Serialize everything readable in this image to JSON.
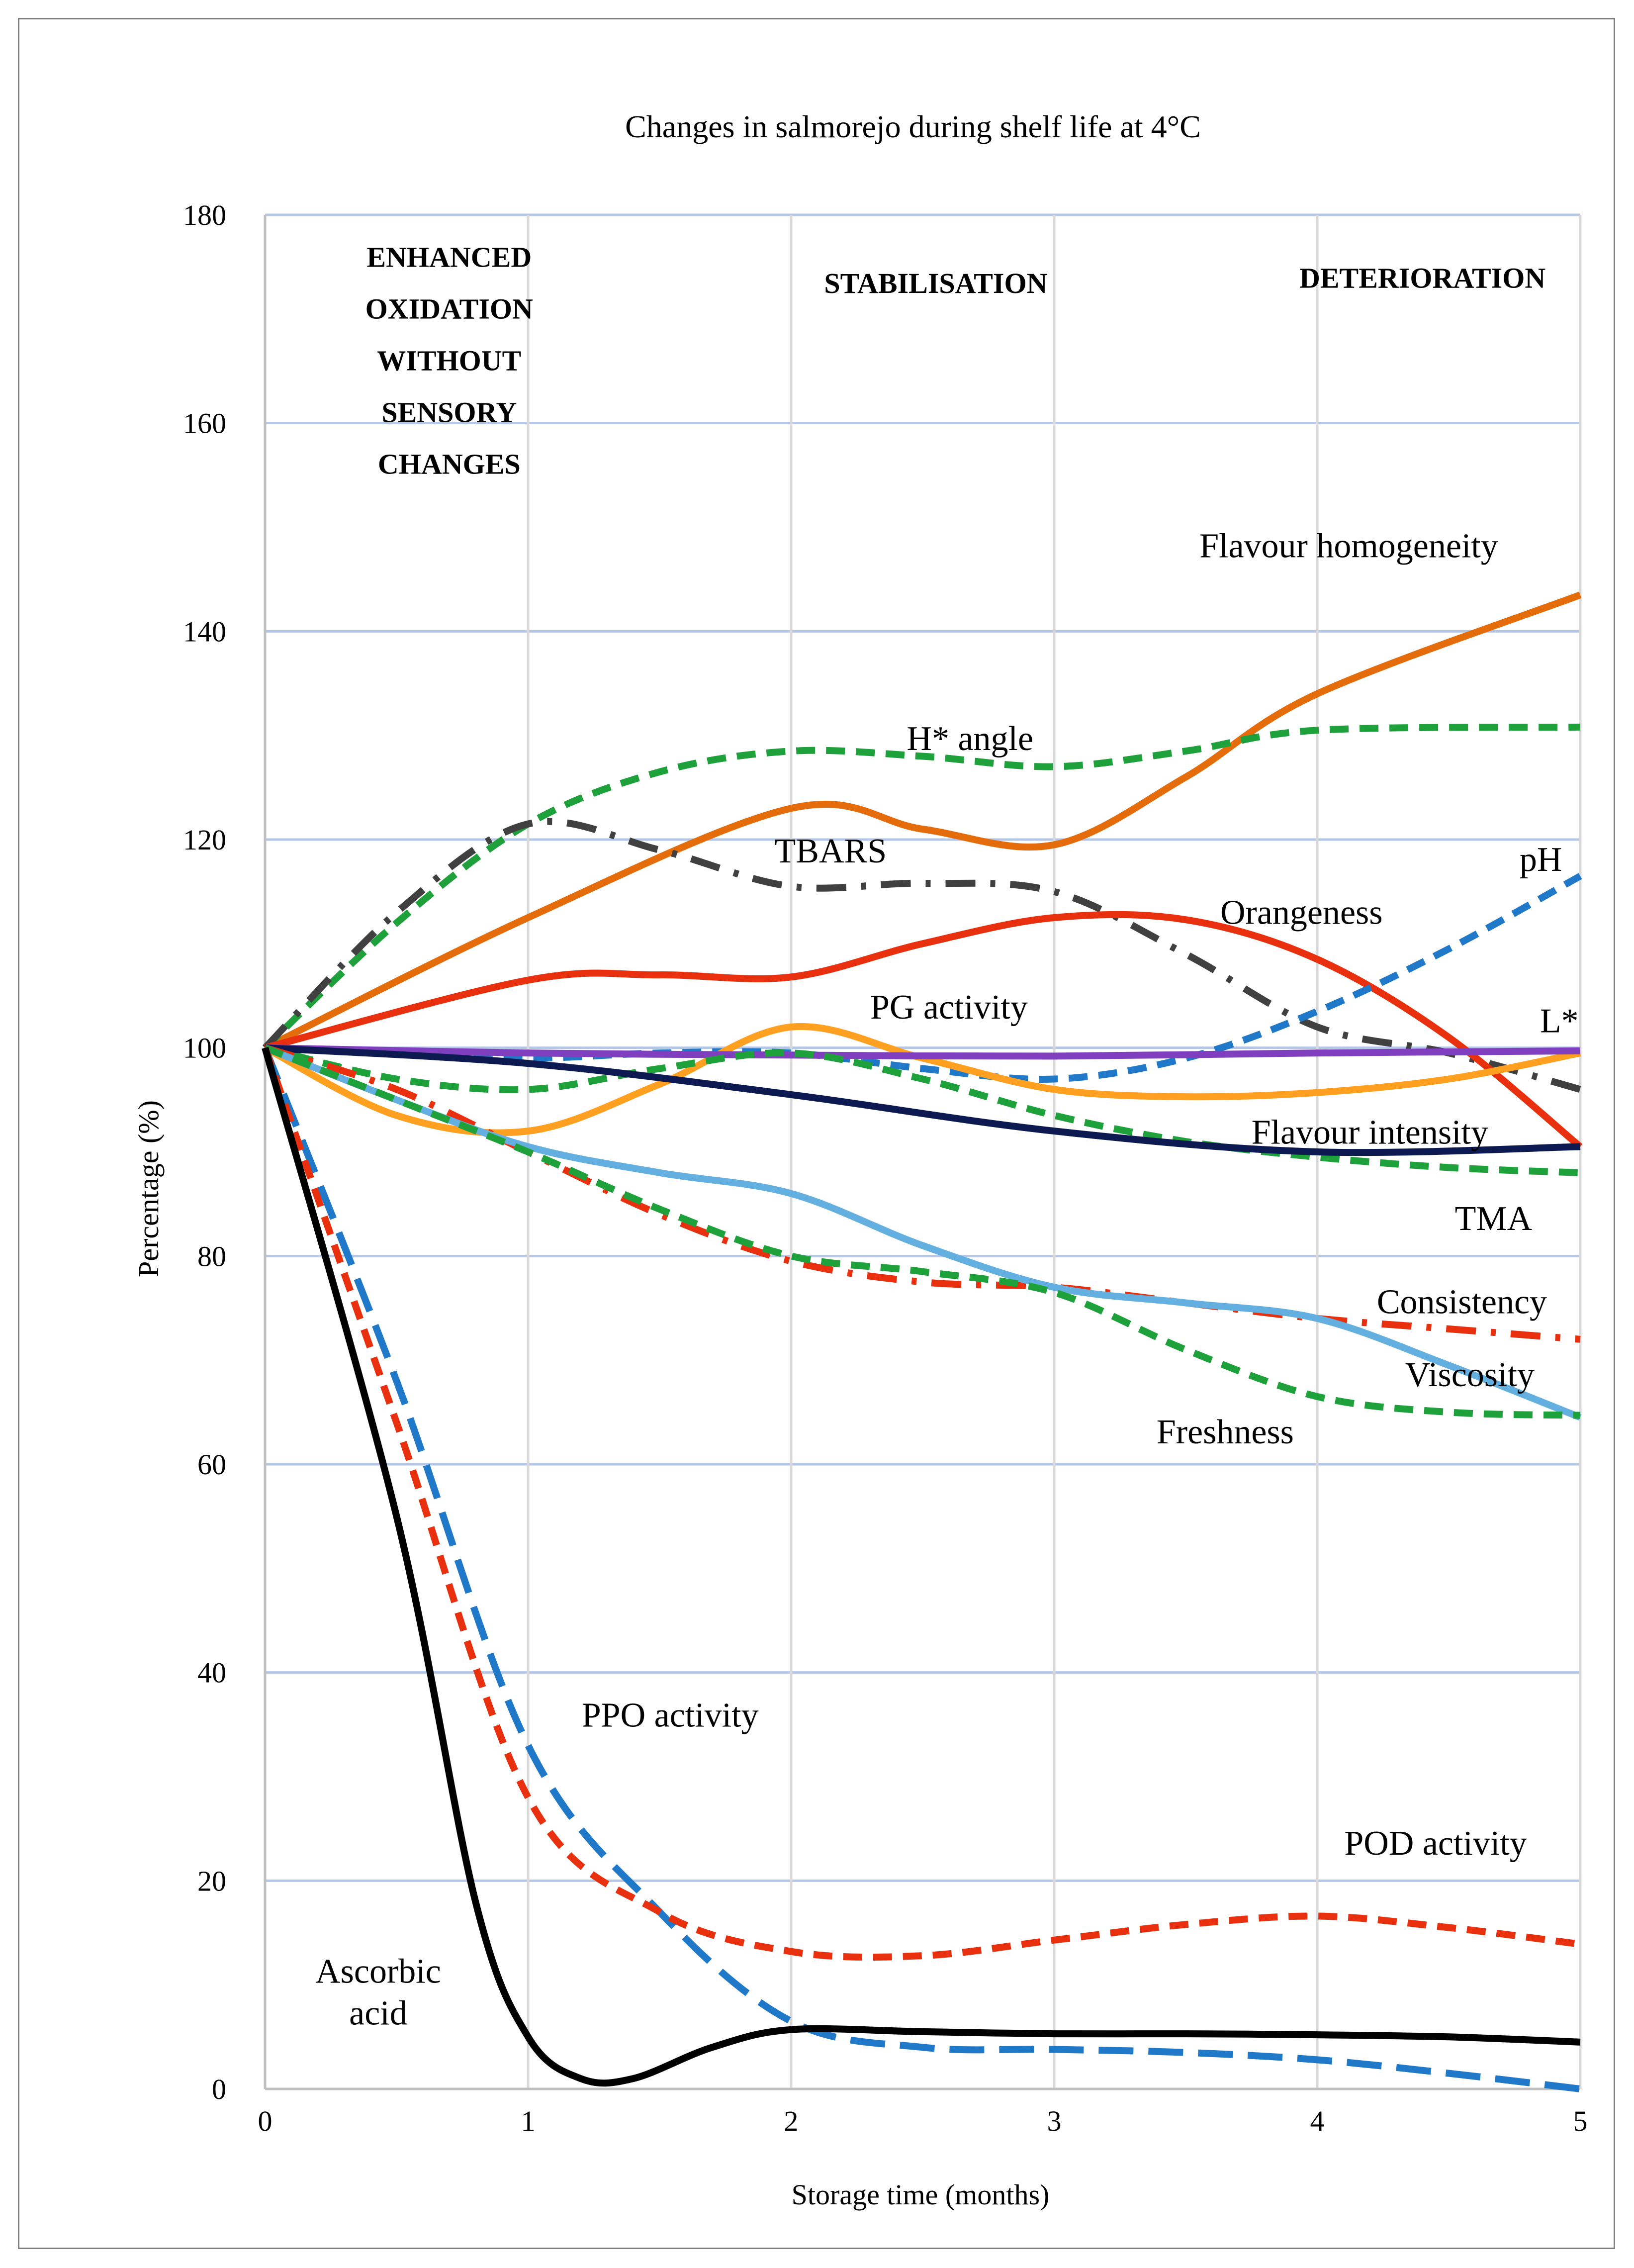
{
  "chart_data": {
    "type": "line",
    "title": "Changes in salmorejo during shelf life at 4°C",
    "xlabel": "Storage time (months)",
    "ylabel": "Percentage (%)",
    "xlim": [
      0,
      5
    ],
    "ylim": [
      0,
      180
    ],
    "x_ticks": [
      "0",
      "1",
      "2",
      "3",
      "4",
      "5"
    ],
    "y_ticks": [
      "0",
      "20",
      "40",
      "60",
      "80",
      "100",
      "120",
      "140",
      "160",
      "180"
    ],
    "grid": true,
    "phases": [
      {
        "lines": [
          "ENHANCED",
          "OXIDATION",
          "WITHOUT",
          "SENSORY",
          "CHANGES"
        ],
        "x": 0.7,
        "y": 175
      },
      {
        "lines": [
          "STABILISATION"
        ],
        "x": 2.55,
        "y": 172.5
      },
      {
        "lines": [
          "DETERIORATION"
        ],
        "x": 4.4,
        "y": 173
      }
    ],
    "series": [
      {
        "name": "Flavour homogeneity",
        "color": "#e46c0a",
        "dash": "solid",
        "label_pos": [
          4.12,
          147.1
        ],
        "points": [
          [
            0,
            100
          ],
          [
            1,
            112.5
          ],
          [
            2,
            123
          ],
          [
            2.5,
            121
          ],
          [
            3,
            119.5
          ],
          [
            3.5,
            126
          ],
          [
            4,
            134
          ],
          [
            5,
            143.5
          ]
        ]
      },
      {
        "name": "H* angle",
        "color": "#1ea13a",
        "dash": "dash",
        "label_pos": [
          2.68,
          128.6
        ],
        "points": [
          [
            0,
            100
          ],
          [
            0.5,
            112
          ],
          [
            1,
            121.5
          ],
          [
            1.5,
            126.5
          ],
          [
            2,
            128.5
          ],
          [
            2.5,
            128
          ],
          [
            3,
            127
          ],
          [
            3.5,
            128.5
          ],
          [
            4,
            130.5
          ],
          [
            5,
            130.8
          ]
        ]
      },
      {
        "name": "TBARS",
        "color": "#404040",
        "dash": "dashdot",
        "label_pos": [
          2.15,
          117.8
        ],
        "points": [
          [
            0,
            100
          ],
          [
            0.5,
            113
          ],
          [
            1,
            121.5
          ],
          [
            1.5,
            119
          ],
          [
            2,
            115.5
          ],
          [
            2.5,
            115.8
          ],
          [
            3,
            115
          ],
          [
            3.5,
            109
          ],
          [
            4,
            102
          ],
          [
            4.5,
            99.5
          ],
          [
            5,
            96
          ]
        ]
      },
      {
        "name": "Orangeness",
        "color": "#e8300e",
        "dash": "solid",
        "label_pos": [
          3.94,
          111.9
        ],
        "points": [
          [
            0,
            100
          ],
          [
            1,
            106.5
          ],
          [
            1.5,
            107
          ],
          [
            2,
            106.8
          ],
          [
            2.5,
            110
          ],
          [
            3,
            112.5
          ],
          [
            3.5,
            112.3
          ],
          [
            4,
            108.5
          ],
          [
            4.5,
            101
          ],
          [
            5,
            90.5
          ]
        ]
      },
      {
        "name": "pH",
        "color": "#1f78c8",
        "dash": "dash",
        "label_pos": [
          4.85,
          117
        ],
        "points": [
          [
            0,
            100
          ],
          [
            0.5,
            99.5
          ],
          [
            1,
            99
          ],
          [
            1.5,
            99.5
          ],
          [
            2,
            99.5
          ],
          [
            2.5,
            98
          ],
          [
            3,
            97
          ],
          [
            3.5,
            99
          ],
          [
            4,
            103.5
          ],
          [
            4.5,
            109.5
          ],
          [
            5,
            116.5
          ]
        ]
      },
      {
        "name": "PG activity",
        "color": "#ffa020",
        "dash": "solid",
        "label_pos": [
          2.6,
          102.8
        ],
        "points": [
          [
            0,
            100
          ],
          [
            0.5,
            93.5
          ],
          [
            1,
            92
          ],
          [
            1.5,
            96.5
          ],
          [
            2,
            102
          ],
          [
            2.5,
            99
          ],
          [
            3,
            96
          ],
          [
            3.5,
            95.3
          ],
          [
            4,
            95.7
          ],
          [
            4.5,
            97
          ],
          [
            5,
            99.5
          ]
        ]
      },
      {
        "name": "L*",
        "color": "#7f3fbf",
        "dash": "solid",
        "label_pos": [
          4.92,
          101.5
        ],
        "points": [
          [
            0,
            100
          ],
          [
            1,
            99.5
          ],
          [
            2,
            99.3
          ],
          [
            3,
            99.2
          ],
          [
            4,
            99.5
          ],
          [
            5,
            99.7
          ]
        ]
      },
      {
        "name": "Flavour intensity",
        "color": "#1ea13a",
        "dash": "dash",
        "label_pos": [
          4.2,
          90.8
        ],
        "points": [
          [
            0,
            100
          ],
          [
            0.5,
            97
          ],
          [
            1,
            96
          ],
          [
            1.5,
            98
          ],
          [
            2,
            99.5
          ],
          [
            2.5,
            97
          ],
          [
            3,
            93.5
          ],
          [
            3.5,
            91
          ],
          [
            4,
            89.5
          ],
          [
            4.5,
            88.5
          ],
          [
            5,
            88
          ]
        ]
      },
      {
        "name": "TMA",
        "color": "#0d1a52",
        "dash": "solid",
        "label_pos": [
          4.67,
          82.5
        ],
        "points": [
          [
            0,
            100
          ],
          [
            1,
            98.5
          ],
          [
            2,
            95.5
          ],
          [
            3,
            92
          ],
          [
            4,
            90
          ],
          [
            5,
            90.5
          ]
        ]
      },
      {
        "name": "Consistency",
        "color": "#e8300e",
        "dash": "dashdot",
        "label_pos": [
          4.55,
          74.5
        ],
        "points": [
          [
            0,
            100
          ],
          [
            0.5,
            96
          ],
          [
            1,
            90
          ],
          [
            1.5,
            84
          ],
          [
            2,
            79.5
          ],
          [
            2.5,
            77.5
          ],
          [
            3,
            77
          ],
          [
            3.5,
            75.5
          ],
          [
            4,
            74
          ],
          [
            4.5,
            73
          ],
          [
            5,
            72
          ]
        ]
      },
      {
        "name": "Viscosity",
        "color": "#63b0e0",
        "dash": "solid",
        "label_pos": [
          4.58,
          67.5
        ],
        "points": [
          [
            0,
            100
          ],
          [
            0.5,
            95
          ],
          [
            1,
            90.5
          ],
          [
            1.5,
            88
          ],
          [
            2,
            86
          ],
          [
            2.5,
            81
          ],
          [
            3,
            77
          ],
          [
            3.5,
            75.5
          ],
          [
            4,
            74
          ],
          [
            4.5,
            69.5
          ],
          [
            5,
            64.5
          ]
        ]
      },
      {
        "name": "Freshness",
        "color": "#1ea13a",
        "dash": "dash",
        "label_pos": [
          3.65,
          62
        ],
        "points": [
          [
            0,
            100
          ],
          [
            0.5,
            95
          ],
          [
            1,
            90
          ],
          [
            1.5,
            84.5
          ],
          [
            2,
            80
          ],
          [
            2.5,
            78.5
          ],
          [
            3,
            76.5
          ],
          [
            3.5,
            71
          ],
          [
            4,
            66.5
          ],
          [
            4.5,
            65
          ],
          [
            5,
            64.7
          ]
        ]
      },
      {
        "name": "PPO activity",
        "color": "#1f78c8",
        "dash": "longdash",
        "label_pos": [
          1.54,
          34.8
        ],
        "points": [
          [
            0,
            100
          ],
          [
            0.5,
            68
          ],
          [
            1,
            33
          ],
          [
            1.5,
            17
          ],
          [
            2,
            6.5
          ],
          [
            2.5,
            4
          ],
          [
            3,
            3.8
          ],
          [
            3.5,
            3.5
          ],
          [
            4,
            2.8
          ],
          [
            4.5,
            1.5
          ],
          [
            5,
            0
          ]
        ]
      },
      {
        "name": "POD activity",
        "color": "#e8300e",
        "dash": "dash",
        "label_pos": [
          4.45,
          22.5
        ],
        "points": [
          [
            0,
            100
          ],
          [
            0.5,
            64
          ],
          [
            1,
            28
          ],
          [
            1.5,
            17
          ],
          [
            2,
            13.2
          ],
          [
            2.5,
            12.8
          ],
          [
            3,
            14.3
          ],
          [
            3.5,
            15.8
          ],
          [
            4,
            16.6
          ],
          [
            4.5,
            15.5
          ],
          [
            5,
            13.9
          ]
        ]
      },
      {
        "name": "Ascorbic acid",
        "label_lines": [
          "Ascorbic",
          "acid"
        ],
        "color": "#000000",
        "dash": "solid",
        "label_pos": [
          0.43,
          10.2
        ],
        "points": [
          [
            0,
            100
          ],
          [
            0.5,
            55
          ],
          [
            0.8,
            18
          ],
          [
            1,
            5
          ],
          [
            1.2,
            1
          ],
          [
            1.4,
            1
          ],
          [
            1.7,
            4
          ],
          [
            2,
            5.7
          ],
          [
            2.5,
            5.5
          ],
          [
            3,
            5.3
          ],
          [
            3.5,
            5.3
          ],
          [
            4,
            5.2
          ],
          [
            4.5,
            5
          ],
          [
            5,
            4.5
          ]
        ]
      }
    ]
  }
}
